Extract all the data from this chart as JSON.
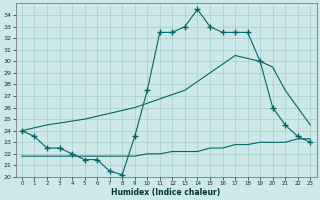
{
  "xlabel": "Humidex (Indice chaleur)",
  "background_color": "#cde8e8",
  "line_color": "#006666",
  "grid_color": "#b8d8d8",
  "xlim": [
    -0.5,
    23.5
  ],
  "ylim": [
    20,
    35
  ],
  "yticks": [
    20,
    21,
    22,
    23,
    24,
    25,
    26,
    27,
    28,
    29,
    30,
    31,
    32,
    33,
    34
  ],
  "xticks": [
    0,
    1,
    2,
    3,
    4,
    5,
    6,
    7,
    8,
    9,
    10,
    11,
    12,
    13,
    14,
    15,
    16,
    17,
    18,
    19,
    20,
    21,
    22,
    23
  ],
  "line1_x": [
    0,
    1,
    2,
    3,
    4,
    5,
    6,
    7,
    8,
    9,
    10,
    11,
    12,
    13,
    14,
    15,
    16,
    17,
    18,
    19,
    20,
    21,
    22,
    23
  ],
  "line1_y": [
    24.0,
    23.5,
    22.5,
    22.5,
    22.0,
    21.5,
    21.5,
    20.5,
    20.2,
    23.5,
    27.5,
    32.5,
    32.5,
    33.0,
    34.5,
    33.0,
    32.5,
    32.5,
    32.5,
    30.0,
    26.0,
    24.5,
    23.5,
    23.0
  ],
  "line2_x": [
    0,
    2,
    5,
    9,
    13,
    17,
    19,
    20,
    21,
    22,
    23
  ],
  "line2_y": [
    24.0,
    24.5,
    25.0,
    26.0,
    27.5,
    30.5,
    30.0,
    29.5,
    27.5,
    26.0,
    24.5
  ],
  "line3_x": [
    0,
    1,
    2,
    3,
    4,
    5,
    6,
    7,
    8,
    9,
    10,
    11,
    12,
    13,
    14,
    15,
    16,
    17,
    18,
    19,
    20,
    21,
    22,
    23
  ],
  "line3_y": [
    21.8,
    21.8,
    21.8,
    21.8,
    21.8,
    21.8,
    21.8,
    21.8,
    21.8,
    21.8,
    22.0,
    22.0,
    22.2,
    22.2,
    22.2,
    22.5,
    22.5,
    22.8,
    22.8,
    23.0,
    23.0,
    23.0,
    23.3,
    23.3
  ]
}
